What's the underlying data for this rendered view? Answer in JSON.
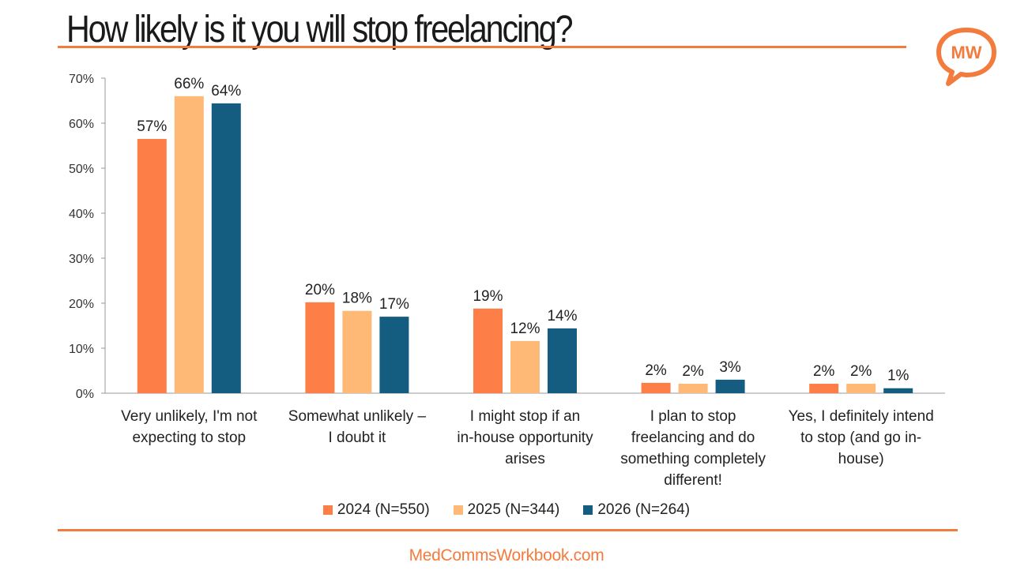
{
  "page": {
    "title": "How likely is it you will stop freelancing?",
    "logo_text": "MW",
    "footer_link": "MedCommsWorkbook.com"
  },
  "colors": {
    "accent": "#f47b3e",
    "series_2024": "#fd7f47",
    "series_2025": "#fdb975",
    "series_2026": "#155d80",
    "axis": "#999999"
  },
  "chart_data": {
    "type": "bar",
    "title": "How likely is it you will stop freelancing?",
    "xlabel": "",
    "ylabel": "",
    "ylim": [
      0,
      70
    ],
    "yticks": [
      0,
      10,
      20,
      30,
      40,
      50,
      60,
      70
    ],
    "ytick_labels": [
      "0%",
      "10%",
      "20%",
      "30%",
      "40%",
      "50%",
      "60%",
      "70%"
    ],
    "categories": [
      [
        "Very unlikely, I'm not",
        "expecting to stop"
      ],
      [
        "Somewhat unlikely –",
        "I doubt it"
      ],
      [
        "I might stop if an",
        "in-house opportunity",
        "arises"
      ],
      [
        "I plan to stop",
        "freelancing and do",
        "something completely",
        "different!"
      ],
      [
        "Yes, I definitely intend",
        "to stop (and go in-",
        "house)"
      ]
    ],
    "series": [
      {
        "name": "2024 (N=550)",
        "color": "#fd7f47",
        "values": [
          56.5,
          20.2,
          18.8,
          2.3,
          2.1
        ],
        "labels": [
          "57%",
          "20%",
          "19%",
          "2%",
          "2%"
        ]
      },
      {
        "name": "2025 (N=344)",
        "color": "#fdb975",
        "values": [
          66.0,
          18.3,
          11.6,
          2.1,
          2.1
        ],
        "labels": [
          "66%",
          "18%",
          "12%",
          "2%",
          "2%"
        ]
      },
      {
        "name": "2026 (N=264)",
        "color": "#155d80",
        "values": [
          64.4,
          17.0,
          14.4,
          3.0,
          1.1
        ],
        "labels": [
          "64%",
          "17%",
          "14%",
          "3%",
          "1%"
        ]
      }
    ],
    "legend_position": "bottom",
    "grid": false
  }
}
